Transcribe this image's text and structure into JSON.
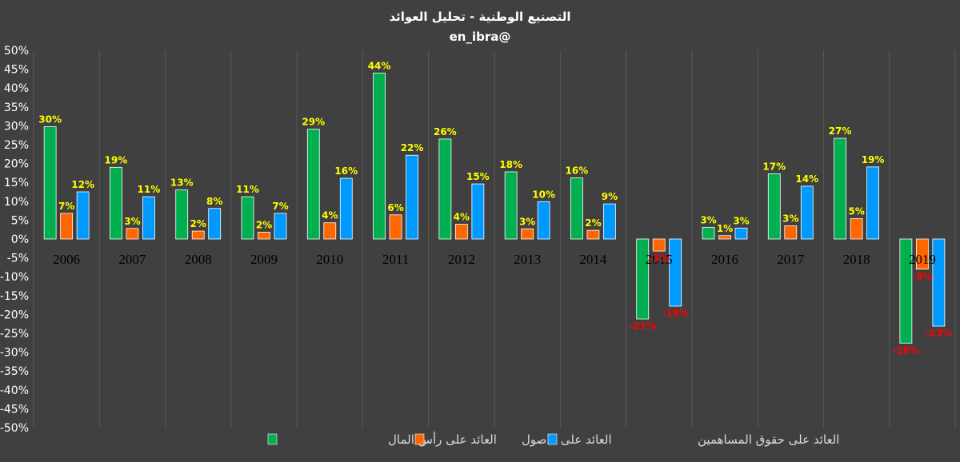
{
  "chart_data": {
    "type": "bar",
    "title": "التصنيع الوطنية - تحليل العوائد",
    "subtitle": "en_ibra@",
    "categories": [
      "2006",
      "2007",
      "2008",
      "2009",
      "2010",
      "2011",
      "2012",
      "2013",
      "2014",
      "2015",
      "2016",
      "2017",
      "2018",
      "2019"
    ],
    "series": [
      {
        "name": "العائد على رأس المال",
        "color": "#00b050",
        "values": [
          29.8,
          19,
          13,
          11.2,
          29.1,
          44,
          26.5,
          17.8,
          16.2,
          -21.2,
          3.1,
          17.3,
          26.7,
          -27.6
        ],
        "labels": [
          "30%",
          "19%",
          "13%",
          "11%",
          "29%",
          "44%",
          "26%",
          "18%",
          "16%",
          "-21%",
          "3%",
          "17%",
          "27%",
          "-28%"
        ]
      },
      {
        "name": "العائد على الاصول",
        "color": "#ff6600",
        "values": [
          6.8,
          2.8,
          2.1,
          1.8,
          4.3,
          6.4,
          3.9,
          2.7,
          2.3,
          -3.2,
          0.9,
          3.5,
          5.4,
          -8
        ],
        "labels": [
          "7%",
          "3%",
          "2%",
          "2%",
          "4%",
          "6%",
          "4%",
          "3%",
          "2%",
          "-3%",
          "1%",
          "3%",
          "5%",
          "-8%"
        ]
      },
      {
        "name": "العائد على حقوق المساهمين",
        "color": "#0099ff",
        "values": [
          12.5,
          11.2,
          8.1,
          6.8,
          16.1,
          22.2,
          14.6,
          9.9,
          9.3,
          -17.8,
          2.9,
          14,
          19.1,
          -23.1
        ],
        "labels": [
          "12%",
          "11%",
          "8%",
          "7%",
          "16%",
          "22%",
          "15%",
          "10%",
          "9%",
          "-18%",
          "3%",
          "14%",
          "19%",
          "-23%"
        ]
      }
    ],
    "yticks": [
      "50%",
      "45%",
      "40%",
      "35%",
      "30%",
      "25%",
      "20%",
      "15%",
      "10%",
      "5%",
      "0%",
      "-5%",
      "-10%",
      "-15%",
      "-20%",
      "-25%",
      "-30%",
      "-35%",
      "-40%",
      "-45%",
      "-50%"
    ],
    "ylim": [
      -50,
      50
    ],
    "grid": "vertical",
    "legend": "bottom",
    "positive_label_color": "#ffff00",
    "negative_label_color": "#ff0000"
  }
}
